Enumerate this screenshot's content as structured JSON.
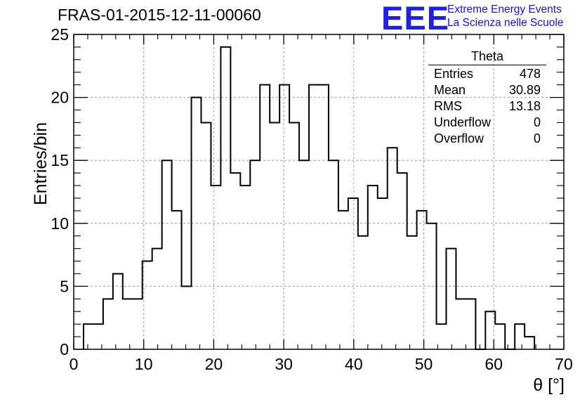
{
  "chart_data": {
    "type": "bar",
    "style": "step-histogram",
    "title": "FRAS-01-2015-12-11-00060",
    "xlabel": "θ [°]",
    "ylabel": "Entries/bin",
    "xlim": [
      0,
      70
    ],
    "ylim": [
      0,
      25
    ],
    "xticks": [
      0,
      10,
      20,
      30,
      40,
      50,
      60,
      70
    ],
    "yticks": [
      0,
      5,
      10,
      15,
      20,
      25
    ],
    "grid": true,
    "bin_width": 1.4,
    "first_bin_start": 1.4,
    "values": [
      2,
      2,
      4,
      6,
      4,
      4,
      7,
      8,
      15,
      11,
      5,
      20,
      18,
      13,
      24,
      14,
      13,
      15,
      21,
      18,
      21,
      18,
      15,
      21,
      21,
      15,
      11,
      12,
      9,
      13,
      12,
      16,
      14,
      9,
      11,
      10,
      2,
      8,
      4,
      4,
      0,
      3,
      2,
      0,
      2,
      1
    ],
    "stats_box": {
      "title": "Theta",
      "rows": [
        {
          "label": "Entries",
          "value": "478"
        },
        {
          "label": "Mean",
          "value": "30.89"
        },
        {
          "label": "RMS",
          "value": "13.18"
        },
        {
          "label": "Underflow",
          "value": "0"
        },
        {
          "label": "Overflow",
          "value": "0"
        }
      ]
    }
  },
  "logo": {
    "mark": "EEE",
    "line1": "Extreme Energy Events",
    "line2": "La Scienza nelle Scuole"
  },
  "colors": {
    "line": "#000000",
    "grid": "#9a9a9a",
    "logo": "#1a1ad8"
  }
}
